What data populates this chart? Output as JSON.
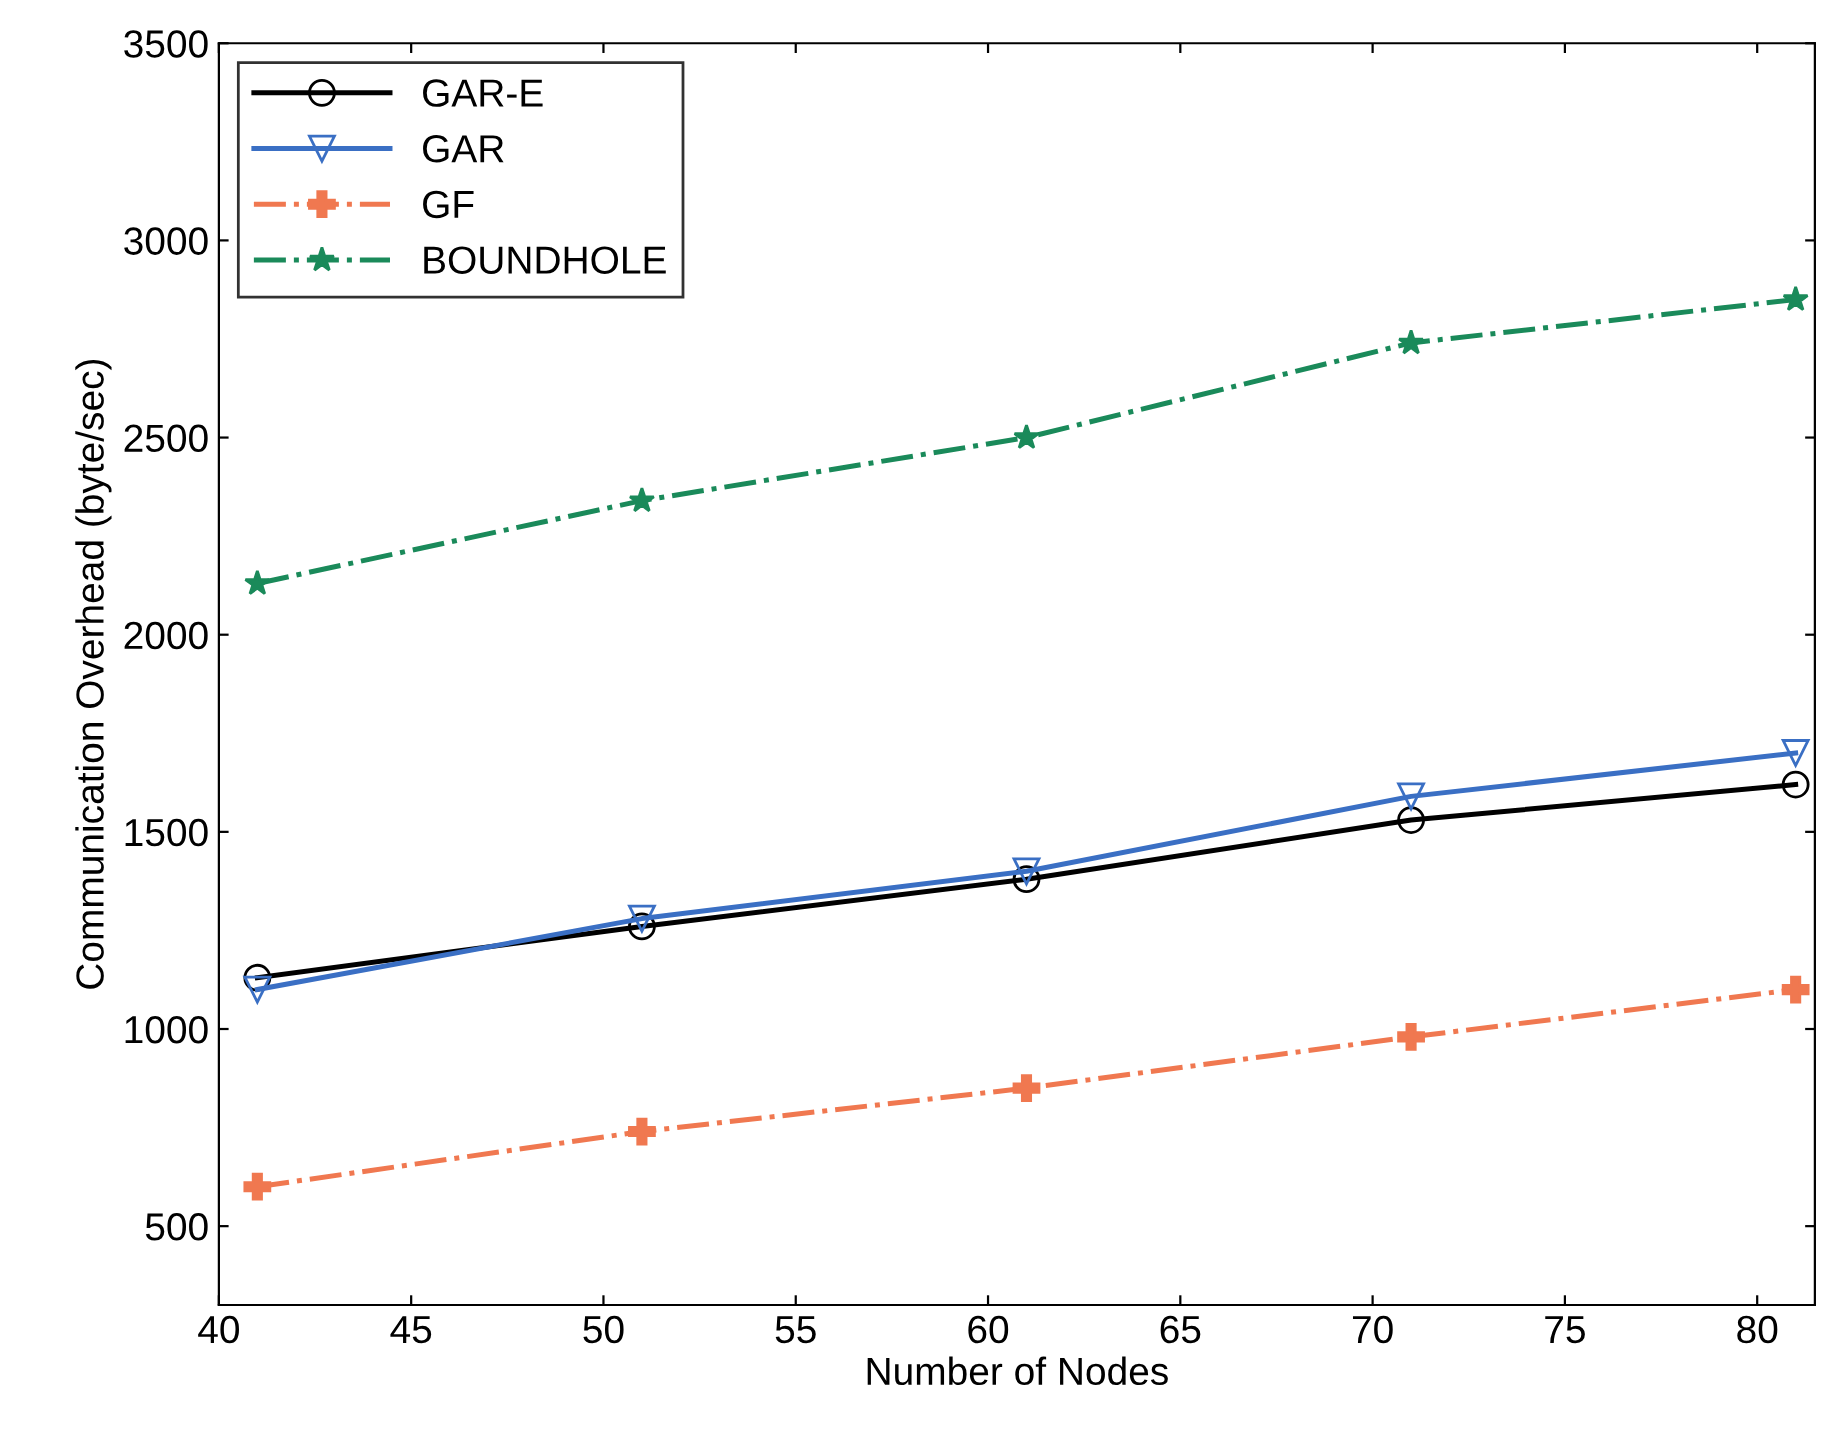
{
  "chart_data": {
    "type": "line",
    "xlabel": "Number of Nodes",
    "ylabel": "Communication Overhead (byte/sec)",
    "x": [
      41,
      51,
      61,
      71,
      81
    ],
    "series": [
      {
        "name": "GAR-E",
        "color": "#000000",
        "marker": "circle",
        "line_style": "solid",
        "values": [
          1130,
          1260,
          1380,
          1530,
          1620
        ]
      },
      {
        "name": "GAR",
        "color": "#3a6fc4",
        "marker": "triangle",
        "line_style": "solid",
        "values": [
          1100,
          1280,
          1400,
          1590,
          1700
        ]
      },
      {
        "name": "GF",
        "color": "#f07850",
        "marker": "cross",
        "line_style": "dashdot",
        "values": [
          600,
          740,
          850,
          980,
          1100
        ]
      },
      {
        "name": "BOUNDHOLE",
        "color": "#1a8a5a",
        "marker": "star",
        "line_style": "dashdot",
        "values": [
          2130,
          2340,
          2500,
          2740,
          2850
        ]
      }
    ],
    "xlim": [
      40,
      81.5
    ],
    "xticks": [
      40,
      45,
      50,
      55,
      60,
      65,
      70,
      75,
      80
    ],
    "ylim": [
      300,
      3500
    ],
    "yticks": [
      500,
      1000,
      1500,
      2000,
      2500,
      3000,
      3500
    ],
    "grid": false,
    "legend": "top left"
  }
}
